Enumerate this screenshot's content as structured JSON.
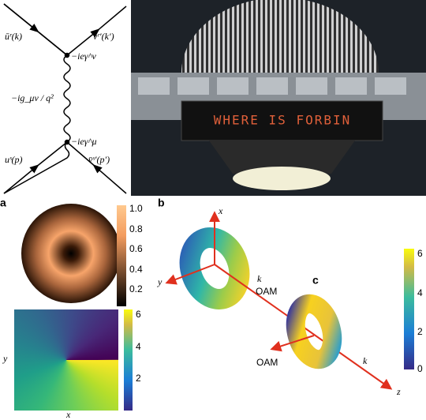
{
  "diagram": {
    "labels": [
      "ūʳ(k)",
      "vʳ′(k′)",
      "−ieγ^ν",
      "−ig_μν / q²",
      "−ieγ^μ",
      "uˢ(p)",
      "v̄ˢ′(p′)"
    ]
  },
  "photo": {
    "sign": "WHERE IS FORBIN"
  },
  "figure": {
    "panels": [
      "a",
      "b",
      "c"
    ],
    "intensity_colorbar": [
      "1.0",
      "0.8",
      "0.6",
      "0.4",
      "0.2"
    ],
    "phase_colorbar": [
      "6",
      "4",
      "2"
    ],
    "phase_axes": [
      "y",
      "x"
    ],
    "torus_b_axes": [
      "x",
      "y",
      "k",
      "OAM"
    ],
    "torus_c_axes": [
      "OAM",
      "k",
      "z"
    ],
    "right_colorbar": [
      "6",
      "4",
      "2",
      "0"
    ]
  }
}
